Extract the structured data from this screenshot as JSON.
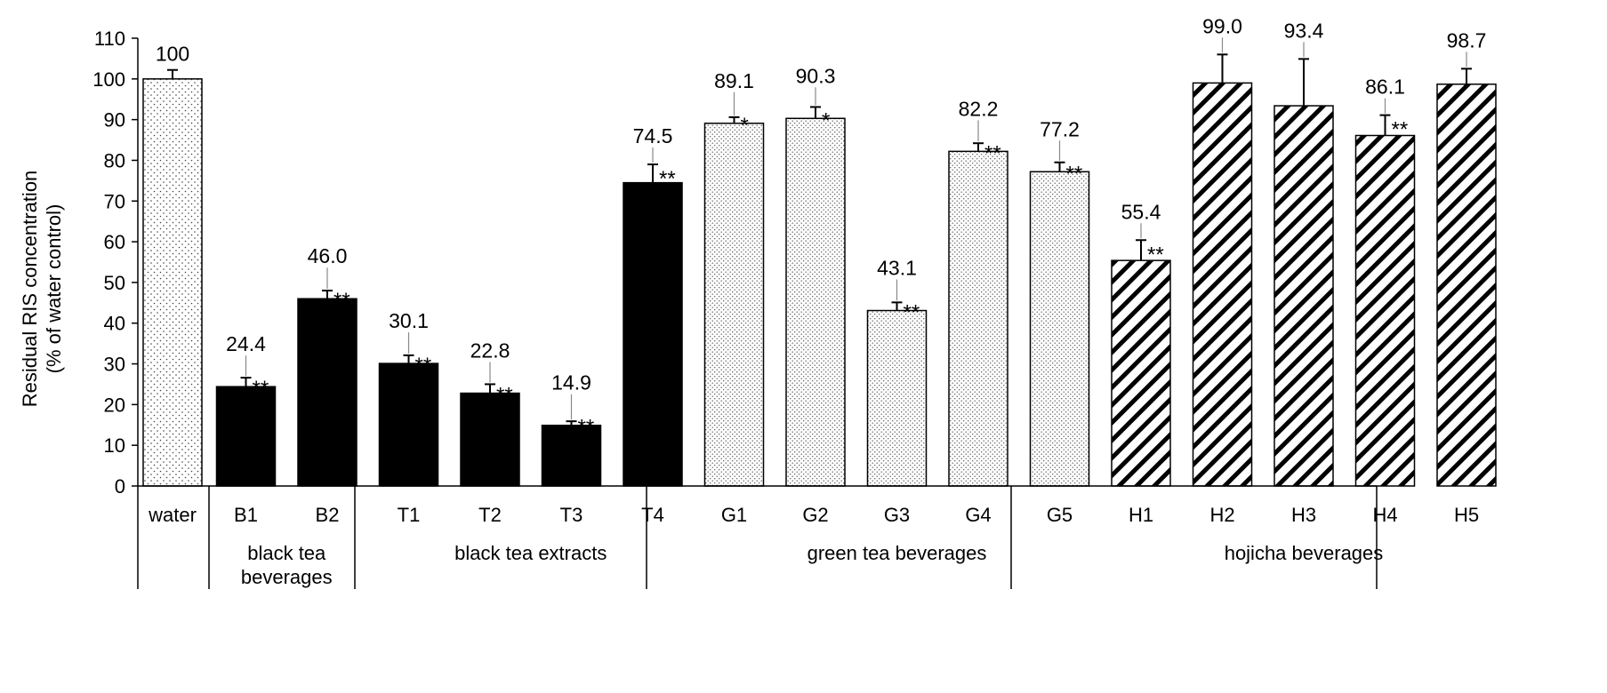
{
  "chart_data": {
    "type": "bar",
    "ylabel_line1": "Residual RIS concentration",
    "ylabel_line2": "(% of  water control)",
    "ylim": [
      0,
      110
    ],
    "ytick_step": 10,
    "grid": false,
    "categories": [
      "water",
      "B1",
      "B2",
      "T1",
      "T2",
      "T3",
      "T4",
      "G1",
      "G2",
      "G3",
      "G4",
      "G5",
      "H1",
      "H2",
      "H3",
      "H4",
      "H5"
    ],
    "values": [
      100,
      24.4,
      46.0,
      30.1,
      22.8,
      14.9,
      74.5,
      89.1,
      90.3,
      43.1,
      82.2,
      77.2,
      55.4,
      99.0,
      93.4,
      86.1,
      98.7
    ],
    "value_labels": [
      "100",
      "24.4",
      "46.0",
      "30.1",
      "22.8",
      "14.9",
      "74.5",
      "89.1",
      "90.3",
      "43.1",
      "82.2",
      "77.2",
      "55.4",
      "99.0",
      "93.4",
      "86.1",
      "98.7"
    ],
    "errors": [
      2.2,
      2.2,
      2.0,
      2.0,
      2.2,
      1.0,
      4.5,
      1.5,
      2.8,
      2.0,
      2.0,
      2.3,
      5.0,
      7.0,
      11.5,
      5.0,
      3.8
    ],
    "significance": [
      "",
      "**",
      "**",
      "**",
      "**",
      "**",
      "**",
      "*",
      "*",
      "**",
      "**",
      "**",
      "**",
      "",
      "",
      "**",
      ""
    ],
    "fills": [
      "dots",
      "black",
      "black",
      "black",
      "black",
      "black",
      "black",
      "finedots",
      "finedots",
      "finedots",
      "finedots",
      "finedots",
      "hatch",
      "hatch",
      "hatch",
      "hatch",
      "hatch"
    ],
    "groups": [
      {
        "lines": [
          "black tea",
          "beverages"
        ],
        "start": 1,
        "end": 2
      },
      {
        "lines": [
          "black tea extracts"
        ],
        "start": 3,
        "end": 6
      },
      {
        "lines": [
          "green tea beverages"
        ],
        "start": 7,
        "end": 11
      },
      {
        "lines": [
          "hojicha beverages"
        ],
        "start": 12,
        "end": 16
      }
    ],
    "colors": {
      "bar_solid": "#000000",
      "outline": "#000000",
      "background": "#ffffff"
    }
  }
}
